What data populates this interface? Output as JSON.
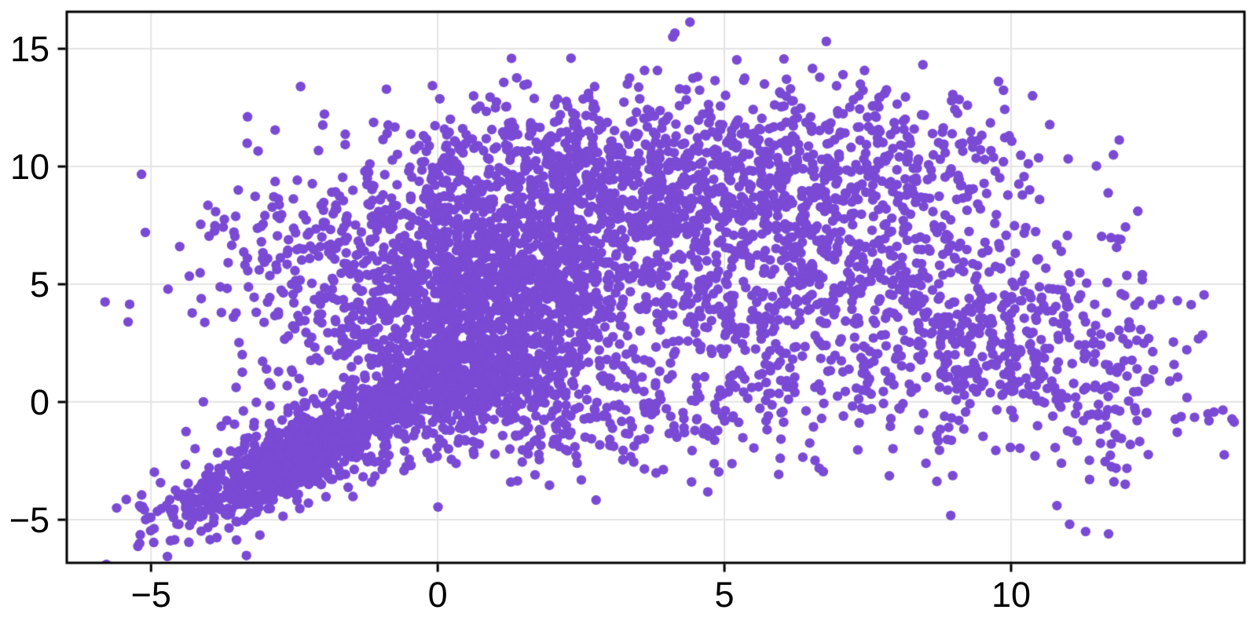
{
  "chart_data": {
    "type": "scatter",
    "title": "",
    "xlabel": "",
    "ylabel": "",
    "xlim": [
      -6.47,
      14.07
    ],
    "ylim": [
      -6.83,
      16.57
    ],
    "x_ticks": [
      -5,
      0,
      5,
      10
    ],
    "x_tick_labels": [
      "−5",
      "0",
      "5",
      "10"
    ],
    "y_ticks": [
      -5,
      0,
      5,
      10,
      15
    ],
    "y_tick_labels": [
      "−5",
      "0",
      "5",
      "10",
      "15"
    ],
    "grid": true,
    "legend": false,
    "background": "#FFFFFF",
    "frame_color": "#000000",
    "grid_color": "#E4E4E4",
    "tick_label_color": "#000000",
    "marker": {
      "shape": "circle",
      "radius_px": 6.2,
      "color": "#7A4AD5",
      "opacity": 1.0
    },
    "n_points_estimate": 5600,
    "distribution_summary": "Single dense purple point cloud: a tight diagonal band rising from (-4.5,-5.5) to (0,1), a very dense core around (0.5,5) extending up to y=13, a broad right wing centered near (7,5) tilted downward toward (13,-1), sparse fringes upper-left near (-5,7) and lower-right near (11.5,-5.5).",
    "seed": 20240601,
    "clusters": [
      {
        "name": "lower-left-band",
        "n": 600,
        "cx": -2.5,
        "cy": -2.4,
        "sx": 1.0,
        "sy": 1.35,
        "rho": 0.82
      },
      {
        "name": "band-fringe",
        "n": 220,
        "cx": -2.3,
        "cy": -1.8,
        "sx": 1.2,
        "sy": 1.6,
        "rho": 0.6
      },
      {
        "name": "elbow-dense",
        "n": 480,
        "cx": 0.5,
        "cy": 0.9,
        "sx": 0.95,
        "sy": 1.1,
        "rho": 0.3
      },
      {
        "name": "main-core",
        "n": 1650,
        "cx": 0.8,
        "cy": 5.0,
        "sx": 1.6,
        "sy": 2.7,
        "rho": 0.15
      },
      {
        "name": "upper-mid",
        "n": 750,
        "cx": 2.8,
        "cy": 9.3,
        "sx": 2.4,
        "sy": 2.0,
        "rho": 0.0
      },
      {
        "name": "right-wing",
        "n": 950,
        "cx": 6.8,
        "cy": 5.0,
        "sx": 2.3,
        "sy": 3.1,
        "rho": -0.35
      },
      {
        "name": "top-right",
        "n": 300,
        "cx": 7.2,
        "cy": 10.6,
        "sx": 1.9,
        "sy": 1.5,
        "rho": -0.1
      },
      {
        "name": "mid-low-bridge",
        "n": 260,
        "cx": 2.8,
        "cy": -0.6,
        "sx": 1.9,
        "sy": 1.4,
        "rho": 0.1
      },
      {
        "name": "far-right-tail",
        "n": 270,
        "cx": 10.6,
        "cy": 1.8,
        "sx": 1.5,
        "sy": 2.3,
        "rho": -0.35
      },
      {
        "name": "left-fringe",
        "n": 80,
        "cx": -2.9,
        "cy": 5.8,
        "sx": 1.0,
        "sy": 2.0,
        "rho": 0.0
      },
      {
        "name": "bottom-left-outliers",
        "n": 14,
        "cx": -4.7,
        "cy": -4.4,
        "sx": 0.55,
        "sy": 0.5,
        "rho": 0.2
      }
    ],
    "notable_points": [
      [
        4.1,
        15.5
      ],
      [
        -5.6,
        -4.5
      ],
      [
        -5.2,
        -4.4
      ],
      [
        -5.1,
        7.2
      ],
      [
        -4.5,
        6.6
      ],
      [
        -5.4,
        3.4
      ],
      [
        13.2,
        -0.65
      ],
      [
        11.3,
        -5.5
      ],
      [
        11.7,
        -5.6
      ],
      [
        12.4,
        2.7
      ],
      [
        12.9,
        4.3
      ],
      [
        10.8,
        -4.4
      ]
    ]
  }
}
